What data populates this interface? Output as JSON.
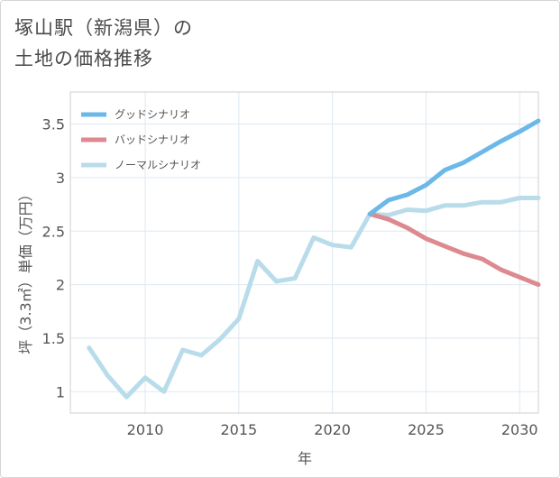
{
  "title_lines": [
    "塚山駅（新潟県）の",
    "土地の価格推移"
  ],
  "chart_data": {
    "type": "line",
    "xlabel": "年",
    "ylabel": "坪（3.3㎡）単価（万円）",
    "xlim": [
      2006,
      2031
    ],
    "ylim": [
      0.8,
      3.8
    ],
    "xticks": [
      2010,
      2015,
      2020,
      2025,
      2030
    ],
    "yticks": [
      1,
      1.5,
      2,
      2.5,
      3,
      3.5
    ],
    "grid": true,
    "legend_position": "top-left",
    "series": [
      {
        "name": "グッドシナリオ",
        "color": "#6cb8e8",
        "x": [
          2022,
          2023,
          2024,
          2025,
          2026,
          2027,
          2028,
          2029,
          2030,
          2031
        ],
        "y": [
          2.66,
          2.79,
          2.84,
          2.93,
          3.07,
          3.14,
          3.24,
          3.34,
          3.43,
          3.53
        ]
      },
      {
        "name": "バッドシナリオ",
        "color": "#dc8a90",
        "x": [
          2022,
          2023,
          2024,
          2025,
          2026,
          2027,
          2028,
          2029,
          2030,
          2031
        ],
        "y": [
          2.66,
          2.61,
          2.53,
          2.43,
          2.36,
          2.29,
          2.24,
          2.14,
          2.07,
          2.0
        ]
      },
      {
        "name": "ノーマルシナリオ",
        "color": "#b9dcea",
        "x": [
          2007,
          2008,
          2009,
          2010,
          2011,
          2012,
          2013,
          2014,
          2015,
          2016,
          2017,
          2018,
          2019,
          2020,
          2021,
          2022,
          2023,
          2024,
          2025,
          2026,
          2027,
          2028,
          2029,
          2030,
          2031
        ],
        "y": [
          1.41,
          1.15,
          0.95,
          1.13,
          1.0,
          1.39,
          1.34,
          1.49,
          1.68,
          2.22,
          2.03,
          2.06,
          2.44,
          2.37,
          2.35,
          2.66,
          2.65,
          2.7,
          2.69,
          2.74,
          2.74,
          2.77,
          2.77,
          2.81,
          2.81
        ]
      }
    ]
  }
}
